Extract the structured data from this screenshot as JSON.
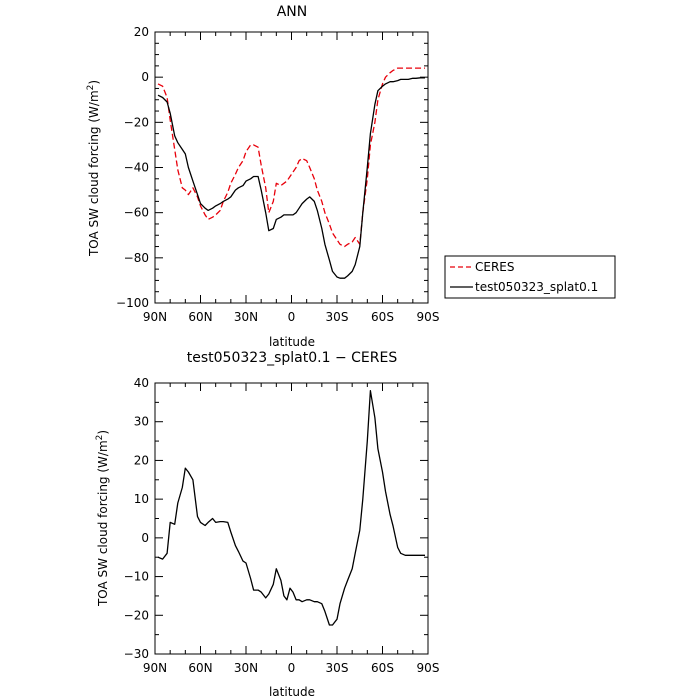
{
  "chart_data": [
    {
      "type": "line",
      "title": "ANN",
      "xlabel": "latitude",
      "ylabel": "TOA SW cloud forcing (W/m",
      "ylabel_sup": "2",
      "ylabel_end": ")",
      "xlim": [
        90,
        -90
      ],
      "ylim": [
        -100,
        20
      ],
      "xticks": [
        90,
        60,
        30,
        0,
        -30,
        -60,
        -90
      ],
      "xtick_labels": [
        "90N",
        "60N",
        "30N",
        "0",
        "30S",
        "60S",
        "90S"
      ],
      "yticks": [
        -100,
        -80,
        -60,
        -40,
        -20,
        0,
        20
      ],
      "ytick_labels": [
        "−100",
        "−80",
        "−60",
        "−40",
        "−20",
        "0",
        "20"
      ],
      "legend": {
        "placement": "right"
      },
      "series": [
        {
          "name": "CERES",
          "color": "#e8000b",
          "style": "dashed",
          "x": [
            88,
            85,
            82,
            80,
            77,
            75,
            72,
            70,
            68,
            65,
            62,
            60,
            57,
            55,
            52,
            50,
            47,
            45,
            42,
            40,
            37,
            35,
            32,
            30,
            27,
            25,
            22,
            20,
            17,
            15,
            12,
            10,
            7,
            5,
            3,
            1,
            -1,
            -3,
            -5,
            -7,
            -10,
            -12,
            -15,
            -17,
            -20,
            -22,
            -25,
            -27,
            -30,
            -32,
            -35,
            -37,
            -40,
            -42,
            -45,
            -47,
            -50,
            -52,
            -55,
            -57,
            -60,
            -62,
            -65,
            -67,
            -70,
            -72,
            -75,
            -77,
            -80,
            -82,
            -85,
            -88
          ],
          "y": [
            -3,
            -4,
            -9,
            -19,
            -32,
            -41,
            -49,
            -50,
            -52,
            -49,
            -53,
            -57,
            -61,
            -63,
            -62,
            -61,
            -59,
            -55,
            -51,
            -47,
            -43,
            -40,
            -37,
            -33,
            -30,
            -30,
            -31,
            -39,
            -49,
            -60,
            -55,
            -47,
            -48,
            -47,
            -46,
            -44,
            -42,
            -40,
            -37,
            -36,
            -37,
            -40,
            -45,
            -50,
            -55,
            -60,
            -65,
            -69,
            -72,
            -74,
            -75,
            -74,
            -73,
            -71,
            -74,
            -60,
            -45,
            -30,
            -20,
            -10,
            -3,
            0,
            2,
            3,
            4,
            4,
            4,
            4,
            4,
            4,
            4,
            4
          ]
        },
        {
          "name": "test050323_splat0.1",
          "color": "#000000",
          "style": "solid",
          "x": [
            88,
            85,
            82,
            80,
            77,
            75,
            72,
            70,
            68,
            65,
            62,
            60,
            57,
            55,
            52,
            50,
            47,
            45,
            42,
            40,
            37,
            35,
            32,
            30,
            27,
            25,
            22,
            20,
            17,
            15,
            12,
            10,
            7,
            5,
            3,
            1,
            -1,
            -3,
            -5,
            -7,
            -10,
            -12,
            -15,
            -17,
            -20,
            -22,
            -25,
            -27,
            -30,
            -32,
            -35,
            -37,
            -40,
            -42,
            -45,
            -47,
            -50,
            -52,
            -55,
            -57,
            -60,
            -62,
            -65,
            -67,
            -70,
            -72,
            -75,
            -77,
            -80,
            -82,
            -85,
            -88
          ],
          "y": [
            -8,
            -9,
            -11,
            -16,
            -26,
            -29,
            -32,
            -34,
            -40,
            -46,
            -52,
            -56,
            -58,
            -59,
            -58,
            -57,
            -56,
            -55,
            -54,
            -53,
            -50,
            -49,
            -48,
            -46,
            -45,
            -44,
            -44,
            -50,
            -60,
            -68,
            -67,
            -63,
            -62,
            -61,
            -61,
            -61,
            -61,
            -60,
            -58,
            -56,
            -54,
            -53,
            -55,
            -59,
            -67,
            -74,
            -81,
            -86,
            -88.5,
            -89,
            -89,
            -88,
            -86,
            -83,
            -75,
            -60,
            -40,
            -25,
            -12,
            -6,
            -4,
            -3,
            -2,
            -2,
            -1.5,
            -1,
            -1,
            -1,
            -0.5,
            -0.5,
            -0.3,
            -0.3
          ]
        }
      ]
    },
    {
      "type": "line",
      "title": "test050323_splat0.1 − CERES",
      "xlabel": "latitude",
      "ylabel": "TOA SW cloud forcing (W/m",
      "ylabel_sup": "2",
      "ylabel_end": ")",
      "xlim": [
        90,
        -90
      ],
      "ylim": [
        -30,
        40
      ],
      "xticks": [
        90,
        60,
        30,
        0,
        -30,
        -60,
        -90
      ],
      "xtick_labels": [
        "90N",
        "60N",
        "30N",
        "0",
        "30S",
        "60S",
        "90S"
      ],
      "yticks": [
        -30,
        -20,
        -10,
        0,
        10,
        20,
        30,
        40
      ],
      "ytick_labels": [
        "−30",
        "−20",
        "−10",
        "0",
        "10",
        "20",
        "30",
        "40"
      ],
      "series": [
        {
          "name": "",
          "color": "#000000",
          "style": "solid",
          "x": [
            88,
            85,
            82,
            80,
            77,
            75,
            72,
            70,
            68,
            65,
            62,
            60,
            57,
            55,
            52,
            50,
            47,
            45,
            42,
            40,
            37,
            35,
            32,
            30,
            27,
            25,
            22,
            20,
            17,
            15,
            12,
            10,
            7,
            5,
            3,
            1,
            -1,
            -3,
            -5,
            -7,
            -10,
            -12,
            -15,
            -17,
            -20,
            -22,
            -25,
            -27,
            -30,
            -32,
            -35,
            -37,
            -40,
            -42,
            -45,
            -47,
            -50,
            -52,
            -55,
            -57,
            -60,
            -62,
            -65,
            -67,
            -70,
            -72,
            -75,
            -77,
            -80,
            -82,
            -85,
            -88
          ],
          "y": [
            -5,
            -5.5,
            -4,
            4,
            3.5,
            9,
            13,
            18,
            17,
            15,
            5.5,
            4,
            3.2,
            4,
            5,
            4,
            4.2,
            4.2,
            4,
            1.5,
            -2,
            -3.5,
            -6,
            -6.5,
            -10.5,
            -13.5,
            -13.5,
            -14,
            -15.5,
            -14.5,
            -12,
            -8,
            -11,
            -15,
            -16,
            -13,
            -14,
            -16,
            -16,
            -16.5,
            -16,
            -16,
            -16.5,
            -16.5,
            -17,
            -19,
            -22.5,
            -22.5,
            -21,
            -17,
            -13,
            -11,
            -8,
            -4,
            2,
            10,
            25,
            38,
            31,
            23,
            17,
            12,
            6,
            3,
            -2.5,
            -4,
            -4.5,
            -4.5,
            -4.5,
            -4.5,
            -4.5,
            -4.5
          ]
        }
      ]
    }
  ]
}
